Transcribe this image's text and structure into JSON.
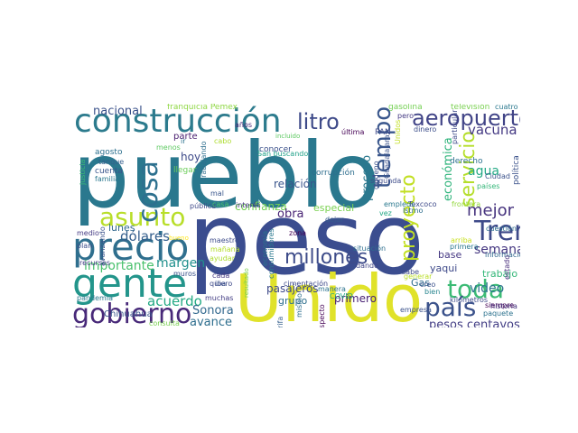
{
  "words": [
    {
      "text": "pueblo",
      "color": "#2a788e"
    },
    {
      "text": "peso",
      "color": "#3b4d8f"
    },
    {
      "text": "Unido",
      "color": "#e0e22a"
    },
    {
      "text": "construcción",
      "color": "#2c7b8d"
    },
    {
      "text": "gente",
      "color": "#23958b"
    },
    {
      "text": "precio",
      "color": "#2f6f8e"
    },
    {
      "text": "asunto",
      "color": "#b8de29"
    },
    {
      "text": "gobierno",
      "color": "#482979"
    },
    {
      "text": "cosa",
      "color": "#2d708e"
    },
    {
      "text": "litro",
      "color": "#3e4a89"
    },
    {
      "text": "aeropuerto",
      "color": "#414487"
    },
    {
      "text": "tiempo",
      "color": "#39568c"
    },
    {
      "text": "proyecto",
      "color": "#c2df23"
    },
    {
      "text": "servicio",
      "color": "#b5de2b"
    },
    {
      "text": "millones",
      "color": "#3e4c8a"
    },
    {
      "text": "Tren",
      "color": "#3e4a89"
    },
    {
      "text": "toda",
      "color": "#3cbb75"
    },
    {
      "text": "país",
      "color": "#3b528b"
    },
    {
      "text": "mejor",
      "color": "#46337e"
    },
    {
      "text": "nacional",
      "color": "#3b528b"
    },
    {
      "text": "dólares",
      "color": "#355f8d"
    },
    {
      "text": "importante",
      "color": "#4ac16d"
    },
    {
      "text": "margen",
      "color": "#21908d"
    },
    {
      "text": "acuerdo",
      "color": "#23a983"
    },
    {
      "text": "Sonora",
      "color": "#31688e"
    },
    {
      "text": "avance",
      "color": "#2e6e8e"
    },
    {
      "text": "lunes",
      "color": "#31688e"
    },
    {
      "text": "centavos",
      "color": "#4ec36b"
    },
    {
      "text": "relación",
      "color": "#39558c"
    },
    {
      "text": "confianza",
      "color": "#75d054"
    },
    {
      "text": "vacuna",
      "color": "#443983"
    },
    {
      "text": "agua",
      "color": "#22a884"
    },
    {
      "text": "económica",
      "color": "#30b47c"
    },
    {
      "text": "semana",
      "color": "#453781"
    },
    {
      "text": "video",
      "color": "#2c738e"
    },
    {
      "text": "pesos centavos",
      "color": "#433e85"
    },
    {
      "text": "pasajeros",
      "color": "#3e4989"
    },
    {
      "text": "primero",
      "color": "#482173"
    },
    {
      "text": "proceso",
      "color": "#2a788e"
    },
    {
      "text": "obra",
      "color": "#482374"
    },
    {
      "text": "especial",
      "color": "#7ad151"
    },
    {
      "text": "hoy",
      "color": "#3e4a89"
    },
    {
      "text": "parte",
      "color": "#481c6e"
    },
    {
      "text": "trabajo",
      "color": "#35b779"
    },
    {
      "text": "Gas",
      "color": "#2f6c8e"
    },
    {
      "text": "base",
      "color": "#453882"
    },
    {
      "text": "yaqui",
      "color": "#3e4989"
    },
    {
      "text": "grupo",
      "color": "#2e6f8e"
    },
    {
      "text": "franquicia Pemex",
      "color": "#8fd744"
    },
    {
      "text": "gasolina",
      "color": "#75d054"
    },
    {
      "text": "televisión",
      "color": "#7ad151"
    },
    {
      "text": "cuatro",
      "color": "#2a788e"
    },
    {
      "text": "agosto",
      "color": "#2d708e"
    },
    {
      "text": "tanque",
      "color": "#355e8d"
    },
    {
      "text": "cuenta",
      "color": "#39558c"
    },
    {
      "text": "familia",
      "color": "#2a778e"
    },
    {
      "text": "menos",
      "color": "#5ec962"
    },
    {
      "text": "llegar",
      "color": "#6ccd5a"
    },
    {
      "text": "ir",
      "color": "#2c728e"
    },
    {
      "text": "cabo",
      "color": "#addc30"
    },
    {
      "text": "San buscando",
      "color": "#1fa188"
    },
    {
      "text": "incluido",
      "color": "#5ec962"
    },
    {
      "text": "última",
      "color": "#440154"
    },
    {
      "text": "PAN",
      "color": "#3e4989"
    },
    {
      "text": "dinero",
      "color": "#3d4e8a"
    },
    {
      "text": "política",
      "color": "#3b528b"
    },
    {
      "text": "justicia",
      "color": "#3cbb75"
    },
    {
      "text": "conocer",
      "color": "#3b518b"
    },
    {
      "text": "corrupción",
      "color": "#2e6e8e"
    },
    {
      "text": "derecho",
      "color": "#2c718e"
    },
    {
      "text": "Ciudad",
      "color": "#3b528b"
    },
    {
      "text": "países",
      "color": "#35b779"
    },
    {
      "text": "mal",
      "color": "#39568c"
    },
    {
      "text": "pública",
      "color": "#3e4a89"
    },
    {
      "text": "casa",
      "color": "#4ac16d"
    },
    {
      "text": "medio",
      "color": "#443a83"
    },
    {
      "text": "plan",
      "color": "#3d4e8a"
    },
    {
      "text": "recursos",
      "color": "#433e85"
    },
    {
      "text": "pandemia",
      "color": "#2a788e"
    },
    {
      "text": "Chihuahua",
      "color": "#39568c"
    },
    {
      "text": "consulta",
      "color": "#7ad151"
    },
    {
      "text": "muchas",
      "color": "#433d84"
    },
    {
      "text": "cada",
      "color": "#453781"
    },
    {
      "text": "quiero",
      "color": "#3e4a89"
    },
    {
      "text": "maestro",
      "color": "#3e4c8a"
    },
    {
      "text": "mañana",
      "color": "#b5de2b"
    },
    {
      "text": "ayudar",
      "color": "#addc30"
    },
    {
      "text": "bueno",
      "color": "#fde725"
    },
    {
      "text": "zona",
      "color": "#440154"
    },
    {
      "text": "dejar",
      "color": "#365c8d"
    },
    {
      "text": "Texcoco",
      "color": "#3e4a89"
    },
    {
      "text": "Istmo",
      "color": "#2e6e8e"
    },
    {
      "text": "situación",
      "color": "#2e6e8e"
    },
    {
      "text": "dando",
      "color": "#404688"
    },
    {
      "text": "cimentación",
      "color": "#3e4989"
    },
    {
      "text": "manera",
      "color": "#2c738e"
    },
    {
      "text": "COVID",
      "color": "#22a884"
    },
    {
      "text": "empleos",
      "color": "#2a788e"
    },
    {
      "text": "frontera",
      "color": "#95d840"
    },
    {
      "text": "cuestión",
      "color": "#2e6d8e"
    },
    {
      "text": "arriba",
      "color": "#c8e020"
    },
    {
      "text": "primera",
      "color": "#2a788e"
    },
    {
      "text": "información",
      "color": "#31688e"
    },
    {
      "text": "sabe",
      "color": "#3e4a89"
    },
    {
      "text": "creo",
      "color": "#3b518b"
    },
    {
      "text": "bien",
      "color": "#25848e"
    },
    {
      "text": "empresa",
      "color": "#3b528b"
    },
    {
      "text": "kilómetros",
      "color": "#3e4c8a"
    },
    {
      "text": "paquete",
      "color": "#2c728e"
    },
    {
      "text": "siempre",
      "color": "#440154"
    },
    {
      "text": "historia",
      "color": "#46337e"
    },
    {
      "text": "estado",
      "color": "#472d7b"
    },
    {
      "text": "generar",
      "color": "#bade28"
    },
    {
      "text": "iba",
      "color": "#3b518b"
    },
    {
      "text": "muros",
      "color": "#3b528b"
    },
    {
      "text": "años",
      "color": "#482878"
    },
    {
      "text": "trabajando",
      "color": "#2e6e8e"
    },
    {
      "text": "oxígeno",
      "color": "#3b518b"
    },
    {
      "text": "segunda",
      "color": "#3e4c8a"
    },
    {
      "text": "Guadalajara",
      "color": "#3b528b"
    },
    {
      "text": "particular",
      "color": "#3e4989"
    },
    {
      "text": "vez",
      "color": "#22a884"
    },
    {
      "text": "consumidores",
      "color": "#2a788e"
    },
    {
      "text": "economía",
      "color": "#2c728e"
    },
    {
      "text": "tarifa",
      "color": "#355f8d"
    },
    {
      "text": "mismo",
      "color": "#2e6e8e"
    },
    {
      "text": "respecto",
      "color": "#440154"
    },
    {
      "text": "resultado",
      "color": "#7ad151"
    },
    {
      "text": "avanzando",
      "color": "#3b528b"
    },
    {
      "text": "interés",
      "color": "#453781"
    },
    {
      "text": "Unidos",
      "color": "#c2df23"
    },
    {
      "text": "pero",
      "color": "#443983"
    }
  ]
}
